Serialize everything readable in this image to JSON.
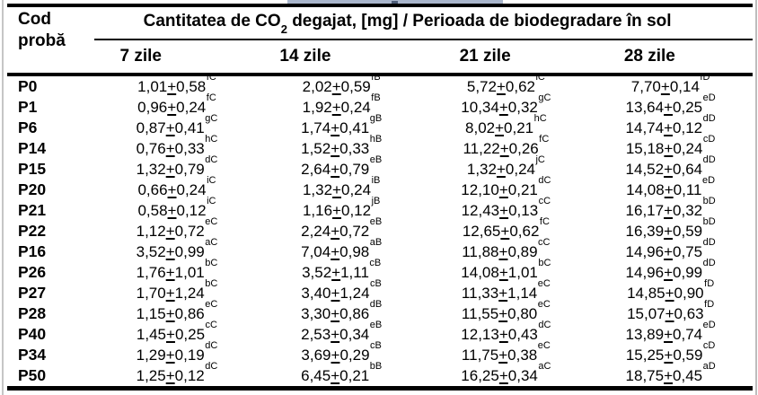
{
  "pm": "+",
  "header": {
    "col0_line1": "Cod",
    "col0_line2": "probă",
    "title_pre": "Cantitatea de CO",
    "title_sub": "2",
    "title_post": " degajat, [mg] / Perioada de biodegradare în sol",
    "periods": [
      "7 zile",
      "14 zile",
      "21 zile",
      "28 zile"
    ]
  },
  "rows": [
    {
      "code": "P0",
      "cells": [
        {
          "a": "1,01",
          "b": "0,58",
          "s": "fC"
        },
        {
          "a": "2,02",
          "b": "0,59",
          "s": "fB"
        },
        {
          "a": "5,72",
          "b": "0,62",
          "s": "iC"
        },
        {
          "a": "7,70",
          "b": "0,14",
          "s": "fD"
        }
      ]
    },
    {
      "code": "P1",
      "cells": [
        {
          "a": "0,96",
          "b": "0,24",
          "s": "fC"
        },
        {
          "a": "1,92",
          "b": "0,24",
          "s": "fB"
        },
        {
          "a": "10,34",
          "b": "0,32",
          "s": "gC"
        },
        {
          "a": "13,64",
          "b": "0,25",
          "s": "eD"
        }
      ]
    },
    {
      "code": "P6",
      "cells": [
        {
          "a": "0,87",
          "b": "0,41",
          "s": "gC"
        },
        {
          "a": "1,74",
          "b": "0,41",
          "s": "gB"
        },
        {
          "a": "8,02",
          "b": "0,21",
          "s": "hC"
        },
        {
          "a": "14,74",
          "b": "0,12",
          "s": "dD"
        }
      ]
    },
    {
      "code": "P14",
      "cells": [
        {
          "a": "0,76",
          "b": "0,33",
          "s": "hC"
        },
        {
          "a": "1,52",
          "b": "0,33",
          "s": "hB"
        },
        {
          "a": "11,22",
          "b": "0,26",
          "s": "fC"
        },
        {
          "a": "15,18",
          "b": "0,24",
          "s": "cD"
        }
      ]
    },
    {
      "code": "P15",
      "cells": [
        {
          "a": "1,32",
          "b": "0,79",
          "s": "dC"
        },
        {
          "a": "2,64",
          "b": "0,79",
          "s": "eB"
        },
        {
          "a": "1,32",
          "b": "0,24",
          "s": "jC"
        },
        {
          "a": "14,52",
          "b": "0,64",
          "s": "dD"
        }
      ]
    },
    {
      "code": "P20",
      "cells": [
        {
          "a": "0,66",
          "b": "0,24",
          "s": "iC"
        },
        {
          "a": "1,32",
          "b": "0,24",
          "s": "iB"
        },
        {
          "a": "12,10",
          "b": "0,21",
          "s": "dC"
        },
        {
          "a": "14,08",
          "b": "0,11",
          "s": "eD"
        }
      ]
    },
    {
      "code": "P21",
      "cells": [
        {
          "a": "0,58",
          "b": "0,12",
          "s": "iC"
        },
        {
          "a": "1,16",
          "b": "0,12",
          "s": "jB"
        },
        {
          "a": "12,43",
          "b": "0,13",
          "s": "cC"
        },
        {
          "a": "16,17",
          "b": "0,32",
          "s": "bD"
        }
      ]
    },
    {
      "code": "P22",
      "cells": [
        {
          "a": "1,12",
          "b": "0,72",
          "s": "eC"
        },
        {
          "a": "2,24",
          "b": "0,72",
          "s": "eB"
        },
        {
          "a": "12,65",
          "b": "0,62",
          "s": "fC"
        },
        {
          "a": "16,39",
          "b": "0,59",
          "s": "bD"
        }
      ]
    },
    {
      "code": "P16",
      "cells": [
        {
          "a": "3,52",
          "b": "0,99",
          "s": "aC"
        },
        {
          "a": "7,04",
          "b": "0,98",
          "s": "aB"
        },
        {
          "a": "11,88",
          "b": "0,89",
          "s": "cC"
        },
        {
          "a": "14,96",
          "b": "0,75",
          "s": "dD"
        }
      ]
    },
    {
      "code": "P26",
      "cells": [
        {
          "a": "1,76",
          "b": "1,01",
          "s": "bC"
        },
        {
          "a": "3,52",
          "b": "1,11",
          "s": "cB"
        },
        {
          "a": "14,08",
          "b": "1,01",
          "s": "bC"
        },
        {
          "a": "14,96",
          "b": "0,99",
          "s": "dD"
        }
      ]
    },
    {
      "code": "P27",
      "cells": [
        {
          "a": "1,70",
          "b": "1,24",
          "s": "bC"
        },
        {
          "a": "3,40",
          "b": "1,24",
          "s": "cB"
        },
        {
          "a": "11,33",
          "b": "1,14",
          "s": "eC"
        },
        {
          "a": "14,85",
          "b": "0,90",
          "s": "fD"
        }
      ]
    },
    {
      "code": "P28",
      "cells": [
        {
          "a": "1,15",
          "b": "0,86",
          "s": "eC"
        },
        {
          "a": "3,30",
          "b": "0,86",
          "s": "dB"
        },
        {
          "a": "11,55",
          "b": "0,80",
          "s": "eC"
        },
        {
          "a": "15,07",
          "b": "0,63",
          "s": "fD"
        }
      ]
    },
    {
      "code": "P40",
      "cells": [
        {
          "a": "1,45",
          "b": "0,25",
          "s": "cC"
        },
        {
          "a": "2,53",
          "b": "0,34",
          "s": "eB"
        },
        {
          "a": "12,13",
          "b": "0,43",
          "s": "dC"
        },
        {
          "a": "13,89",
          "b": "0,74",
          "s": "eD"
        }
      ]
    },
    {
      "code": "P34",
      "cells": [
        {
          "a": "1,29",
          "b": "0,19",
          "s": "dC"
        },
        {
          "a": "3,69",
          "b": "0,29",
          "s": "cB"
        },
        {
          "a": "11,75",
          "b": "0,38",
          "s": "eC"
        },
        {
          "a": "15,25",
          "b": "0,59",
          "s": "cD"
        }
      ]
    },
    {
      "code": "P50",
      "cells": [
        {
          "a": "1,25",
          "b": "0,12",
          "s": "dC"
        },
        {
          "a": "6,45",
          "b": "0,21",
          "s": "bB"
        },
        {
          "a": "16,25",
          "b": "0,34",
          "s": "aC"
        },
        {
          "a": "18,75",
          "b": "0,45",
          "s": "aD"
        }
      ]
    }
  ]
}
